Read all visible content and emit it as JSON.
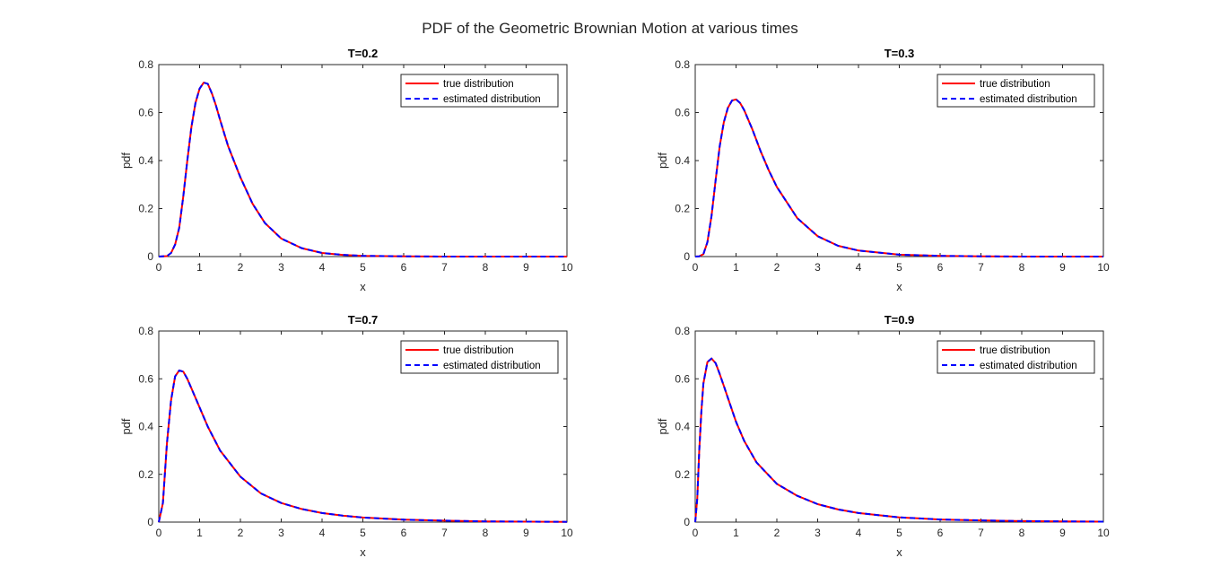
{
  "figure": {
    "title": "PDF of the Geometric Brownian Motion at various times"
  },
  "chart_data": [
    {
      "type": "line",
      "title": "T=0.2",
      "xlabel": "x",
      "ylabel": "pdf",
      "xlim": [
        0,
        10
      ],
      "ylim": [
        0,
        0.8
      ],
      "xticks": [
        "0",
        "1",
        "2",
        "3",
        "4",
        "5",
        "6",
        "7",
        "8",
        "9",
        "10"
      ],
      "yticks": [
        "0",
        "0.2",
        "0.4",
        "0.6",
        "0.8"
      ],
      "legend_position": "top-right",
      "grid": false,
      "series": [
        {
          "name": "true distribution",
          "color": "#ff0000",
          "style": "solid",
          "x": [
            0,
            0.2,
            0.3,
            0.4,
            0.5,
            0.6,
            0.7,
            0.8,
            0.9,
            1.0,
            1.1,
            1.2,
            1.3,
            1.4,
            1.5,
            1.7,
            2.0,
            2.3,
            2.6,
            3.0,
            3.5,
            4.0,
            4.5,
            5.0,
            6.0,
            7.0,
            8.0,
            9.0,
            10.0
          ],
          "y": [
            0,
            0.002,
            0.015,
            0.05,
            0.12,
            0.25,
            0.4,
            0.54,
            0.64,
            0.7,
            0.725,
            0.72,
            0.68,
            0.63,
            0.57,
            0.46,
            0.33,
            0.22,
            0.14,
            0.075,
            0.035,
            0.015,
            0.007,
            0.003,
            0.001,
            0,
            0,
            0,
            0
          ]
        },
        {
          "name": "estimated distribution",
          "color": "#0000ff",
          "style": "dashed",
          "x": [
            0,
            0.2,
            0.3,
            0.4,
            0.5,
            0.6,
            0.7,
            0.8,
            0.9,
            1.0,
            1.1,
            1.2,
            1.3,
            1.4,
            1.5,
            1.7,
            2.0,
            2.3,
            2.6,
            3.0,
            3.5,
            4.0,
            4.5,
            5.0,
            6.0,
            7.0,
            8.0,
            9.0,
            10.0
          ],
          "y": [
            0,
            0.002,
            0.015,
            0.05,
            0.12,
            0.25,
            0.4,
            0.54,
            0.64,
            0.7,
            0.725,
            0.72,
            0.68,
            0.63,
            0.57,
            0.46,
            0.33,
            0.22,
            0.14,
            0.075,
            0.035,
            0.015,
            0.007,
            0.003,
            0.001,
            0,
            0,
            0,
            0
          ]
        }
      ]
    },
    {
      "type": "line",
      "title": "T=0.3",
      "xlabel": "x",
      "ylabel": "pdf",
      "xlim": [
        0,
        10
      ],
      "ylim": [
        0,
        0.8
      ],
      "xticks": [
        "0",
        "1",
        "2",
        "3",
        "4",
        "5",
        "6",
        "7",
        "8",
        "9",
        "10"
      ],
      "yticks": [
        "0",
        "0.2",
        "0.4",
        "0.6",
        "0.8"
      ],
      "legend_position": "top-right",
      "grid": false,
      "series": [
        {
          "name": "true distribution",
          "color": "#ff0000",
          "style": "solid",
          "x": [
            0,
            0.1,
            0.2,
            0.3,
            0.4,
            0.5,
            0.6,
            0.7,
            0.8,
            0.9,
            1.0,
            1.1,
            1.2,
            1.4,
            1.6,
            1.8,
            2.0,
            2.5,
            3.0,
            3.5,
            4.0,
            5.0,
            6.0,
            7.0,
            8.0,
            9.0,
            10.0
          ],
          "y": [
            0,
            0.001,
            0.01,
            0.06,
            0.17,
            0.32,
            0.46,
            0.56,
            0.62,
            0.65,
            0.655,
            0.64,
            0.61,
            0.53,
            0.44,
            0.36,
            0.29,
            0.16,
            0.085,
            0.045,
            0.025,
            0.008,
            0.003,
            0.001,
            0,
            0,
            0
          ]
        },
        {
          "name": "estimated distribution",
          "color": "#0000ff",
          "style": "dashed",
          "x": [
            0,
            0.1,
            0.2,
            0.3,
            0.4,
            0.5,
            0.6,
            0.7,
            0.8,
            0.9,
            1.0,
            1.1,
            1.2,
            1.4,
            1.6,
            1.8,
            2.0,
            2.5,
            3.0,
            3.5,
            4.0,
            5.0,
            6.0,
            7.0,
            8.0,
            9.0,
            10.0
          ],
          "y": [
            0,
            0.001,
            0.01,
            0.06,
            0.17,
            0.32,
            0.46,
            0.56,
            0.62,
            0.65,
            0.655,
            0.64,
            0.61,
            0.53,
            0.44,
            0.36,
            0.29,
            0.16,
            0.085,
            0.045,
            0.025,
            0.008,
            0.003,
            0.001,
            0,
            0,
            0
          ]
        }
      ]
    },
    {
      "type": "line",
      "title": "T=0.7",
      "xlabel": "x",
      "ylabel": "pdf",
      "xlim": [
        0,
        10
      ],
      "ylim": [
        0,
        0.8
      ],
      "xticks": [
        "0",
        "1",
        "2",
        "3",
        "4",
        "5",
        "6",
        "7",
        "8",
        "9",
        "10"
      ],
      "yticks": [
        "0",
        "0.2",
        "0.4",
        "0.6",
        "0.8"
      ],
      "legend_position": "top-right",
      "grid": false,
      "series": [
        {
          "name": "true distribution",
          "color": "#ff0000",
          "style": "solid",
          "x": [
            0,
            0.1,
            0.2,
            0.3,
            0.4,
            0.5,
            0.6,
            0.7,
            0.8,
            1.0,
            1.2,
            1.5,
            2.0,
            2.5,
            3.0,
            3.5,
            4.0,
            4.5,
            5.0,
            6.0,
            7.0,
            8.0,
            9.0,
            10.0
          ],
          "y": [
            0,
            0.08,
            0.33,
            0.51,
            0.61,
            0.635,
            0.63,
            0.6,
            0.56,
            0.48,
            0.4,
            0.3,
            0.19,
            0.12,
            0.08,
            0.055,
            0.038,
            0.027,
            0.019,
            0.01,
            0.006,
            0.003,
            0.002,
            0.001
          ]
        },
        {
          "name": "estimated distribution",
          "color": "#0000ff",
          "style": "dashed",
          "x": [
            0,
            0.1,
            0.2,
            0.3,
            0.4,
            0.5,
            0.6,
            0.7,
            0.8,
            1.0,
            1.2,
            1.5,
            2.0,
            2.5,
            3.0,
            3.5,
            4.0,
            4.5,
            5.0,
            6.0,
            7.0,
            8.0,
            9.0,
            10.0
          ],
          "y": [
            0,
            0.08,
            0.33,
            0.51,
            0.61,
            0.635,
            0.63,
            0.6,
            0.56,
            0.48,
            0.4,
            0.3,
            0.19,
            0.12,
            0.08,
            0.055,
            0.038,
            0.027,
            0.019,
            0.01,
            0.006,
            0.003,
            0.002,
            0.001
          ]
        }
      ]
    },
    {
      "type": "line",
      "title": "T=0.9",
      "xlabel": "x",
      "ylabel": "pdf",
      "xlim": [
        0,
        10
      ],
      "ylim": [
        0,
        0.8
      ],
      "xticks": [
        "0",
        "1",
        "2",
        "3",
        "4",
        "5",
        "6",
        "7",
        "8",
        "9",
        "10"
      ],
      "yticks": [
        "0",
        "0.2",
        "0.4",
        "0.6",
        "0.8"
      ],
      "legend_position": "top-right",
      "grid": false,
      "series": [
        {
          "name": "true distribution",
          "color": "#ff0000",
          "style": "solid",
          "x": [
            0,
            0.05,
            0.1,
            0.15,
            0.2,
            0.3,
            0.4,
            0.5,
            0.6,
            0.7,
            0.8,
            1.0,
            1.2,
            1.5,
            2.0,
            2.5,
            3.0,
            3.5,
            4.0,
            5.0,
            6.0,
            7.0,
            8.0,
            9.0,
            10.0
          ],
          "y": [
            0,
            0.1,
            0.3,
            0.46,
            0.58,
            0.67,
            0.685,
            0.665,
            0.62,
            0.57,
            0.52,
            0.42,
            0.34,
            0.25,
            0.16,
            0.11,
            0.075,
            0.053,
            0.038,
            0.02,
            0.011,
            0.007,
            0.004,
            0.003,
            0.002
          ]
        },
        {
          "name": "estimated distribution",
          "color": "#0000ff",
          "style": "dashed",
          "x": [
            0,
            0.05,
            0.1,
            0.15,
            0.2,
            0.3,
            0.4,
            0.5,
            0.6,
            0.7,
            0.8,
            1.0,
            1.2,
            1.5,
            2.0,
            2.5,
            3.0,
            3.5,
            4.0,
            5.0,
            6.0,
            7.0,
            8.0,
            9.0,
            10.0
          ],
          "y": [
            0,
            0.1,
            0.3,
            0.46,
            0.58,
            0.67,
            0.685,
            0.665,
            0.62,
            0.57,
            0.52,
            0.42,
            0.34,
            0.25,
            0.16,
            0.11,
            0.075,
            0.053,
            0.038,
            0.02,
            0.011,
            0.007,
            0.004,
            0.003,
            0.002
          ]
        }
      ]
    }
  ]
}
